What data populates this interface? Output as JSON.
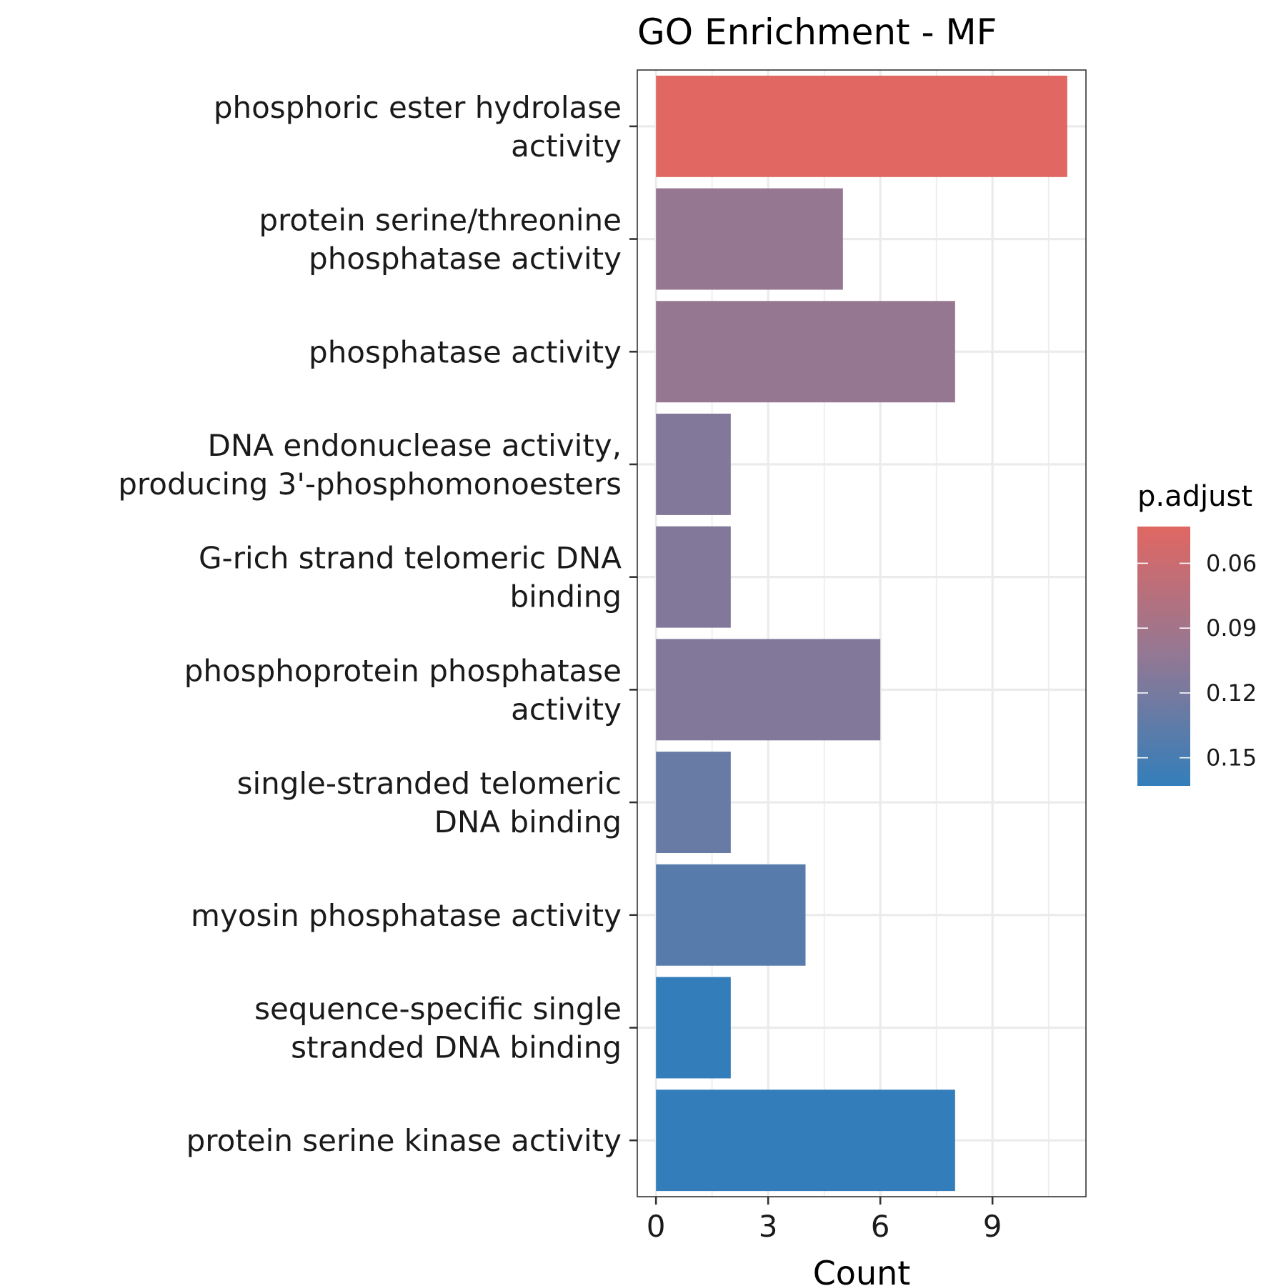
{
  "chart_data": {
    "type": "bar",
    "orientation": "horizontal",
    "title": "GO Enrichment - MF",
    "xlabel": "Count",
    "ylabel": "",
    "xlim": [
      -0.5,
      11.5
    ],
    "x_ticks": [
      0,
      3,
      6,
      9
    ],
    "grid": true,
    "categories": [
      [
        "phosphoric ester hydrolase",
        "activity"
      ],
      [
        "protein serine/threonine",
        "phosphatase activity"
      ],
      [
        "phosphatase activity"
      ],
      [
        "DNA endonuclease activity,",
        "producing 3'-phosphomonoesters"
      ],
      [
        "G-rich strand telomeric DNA",
        "binding"
      ],
      [
        "phosphoprotein phosphatase",
        "activity"
      ],
      [
        "single-stranded telomeric",
        "DNA binding"
      ],
      [
        "myosin phosphatase activity"
      ],
      [
        "sequence-specific single",
        "stranded DNA binding"
      ],
      [
        "protein serine kinase activity"
      ]
    ],
    "values": [
      11,
      5,
      8,
      2,
      2,
      6,
      2,
      4,
      2,
      8
    ],
    "p_adjust": [
      0.043,
      0.1,
      0.1,
      0.113,
      0.113,
      0.113,
      0.13,
      0.14,
      0.163,
      0.163
    ],
    "legend": {
      "title": "p.adjust",
      "position": "right",
      "range": [
        0.043,
        0.163
      ],
      "ticks": [
        0.06,
        0.09,
        0.12,
        0.15
      ],
      "tick_labels": [
        "0.06",
        "0.09",
        "0.12",
        "0.15"
      ],
      "color_low": "#E06762",
      "color_high": "#337EBA"
    }
  }
}
